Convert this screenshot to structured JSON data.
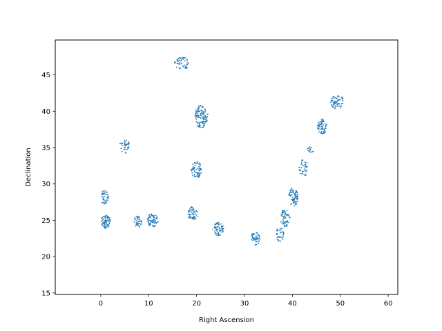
{
  "chart_data": {
    "type": "scatter",
    "title": "",
    "xlabel": "Right Ascension",
    "ylabel": "Declination",
    "xlim": [
      -9.5,
      62
    ],
    "ylim": [
      14.8,
      49.8
    ],
    "xticks": [
      0,
      10,
      20,
      30,
      40,
      50,
      60
    ],
    "yticks": [
      15,
      20,
      25,
      30,
      35,
      40,
      45
    ],
    "grid": false,
    "legend": "none",
    "marker_color": "#1f77b4",
    "clusters": [
      {
        "ra": 17.0,
        "dec": 46.6,
        "rx": 1.6,
        "ry": 0.9,
        "n": 50
      },
      {
        "ra": 21.0,
        "dec": 39.3,
        "rx": 1.4,
        "ry": 1.6,
        "n": 120
      },
      {
        "ra": 5.0,
        "dec": 35.2,
        "rx": 1.1,
        "ry": 1.0,
        "n": 35
      },
      {
        "ra": 20.0,
        "dec": 31.9,
        "rx": 1.1,
        "ry": 1.2,
        "n": 70
      },
      {
        "ra": 0.8,
        "dec": 28.2,
        "rx": 0.8,
        "ry": 1.0,
        "n": 45
      },
      {
        "ra": 1.0,
        "dec": 24.8,
        "rx": 1.1,
        "ry": 0.9,
        "n": 70
      },
      {
        "ra": 7.8,
        "dec": 24.8,
        "rx": 0.9,
        "ry": 0.8,
        "n": 40
      },
      {
        "ra": 10.8,
        "dec": 25.0,
        "rx": 1.2,
        "ry": 0.9,
        "n": 70
      },
      {
        "ra": 19.2,
        "dec": 25.9,
        "rx": 1.0,
        "ry": 1.0,
        "n": 55
      },
      {
        "ra": 24.5,
        "dec": 23.8,
        "rx": 1.2,
        "ry": 0.9,
        "n": 60
      },
      {
        "ra": 32.3,
        "dec": 22.5,
        "rx": 1.0,
        "ry": 0.9,
        "n": 50
      },
      {
        "ra": 37.4,
        "dec": 23.0,
        "rx": 0.9,
        "ry": 1.0,
        "n": 35
      },
      {
        "ra": 38.5,
        "dec": 25.3,
        "rx": 1.0,
        "ry": 1.2,
        "n": 60
      },
      {
        "ra": 40.2,
        "dec": 28.2,
        "rx": 1.0,
        "ry": 1.3,
        "n": 80
      },
      {
        "ra": 42.3,
        "dec": 32.2,
        "rx": 0.9,
        "ry": 1.2,
        "n": 40
      },
      {
        "ra": 43.8,
        "dec": 34.7,
        "rx": 0.7,
        "ry": 0.6,
        "n": 15
      },
      {
        "ra": 46.2,
        "dec": 37.9,
        "rx": 1.1,
        "ry": 1.0,
        "n": 65
      },
      {
        "ra": 49.3,
        "dec": 41.3,
        "rx": 1.4,
        "ry": 1.0,
        "n": 65
      }
    ]
  }
}
